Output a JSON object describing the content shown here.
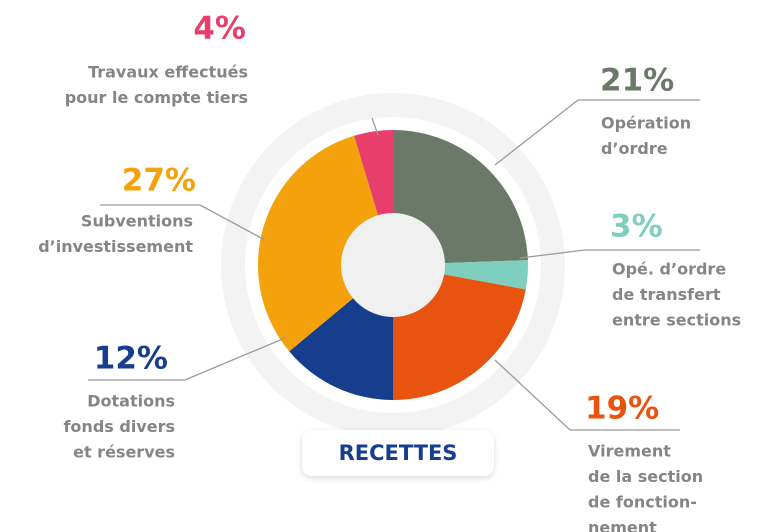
{
  "chart_data": {
    "type": "donut",
    "label": "RECETTES",
    "categories": [
      [
        "Opération",
        "d’ordre"
      ],
      [
        "Opé. d’ordre",
        "de transfert",
        "entre sections"
      ],
      [
        "Virement",
        "de la section",
        "de fonction-",
        "nement"
      ],
      [
        "Dotations",
        "fonds divers",
        "et réserves"
      ],
      [
        "Subventions",
        "d’investissement"
      ],
      [
        "Travaux effectués",
        "pour le compte tiers"
      ]
    ],
    "values": [
      21,
      3,
      19,
      12,
      27,
      4
    ],
    "value_labels": [
      "21%",
      "3%",
      "19%",
      "12%",
      "27%",
      "4%"
    ],
    "colors": [
      "#6b7a68",
      "#7fcfbf",
      "#e8540f",
      "#173e8c",
      "#f4a20c",
      "#e83e6c"
    ]
  }
}
